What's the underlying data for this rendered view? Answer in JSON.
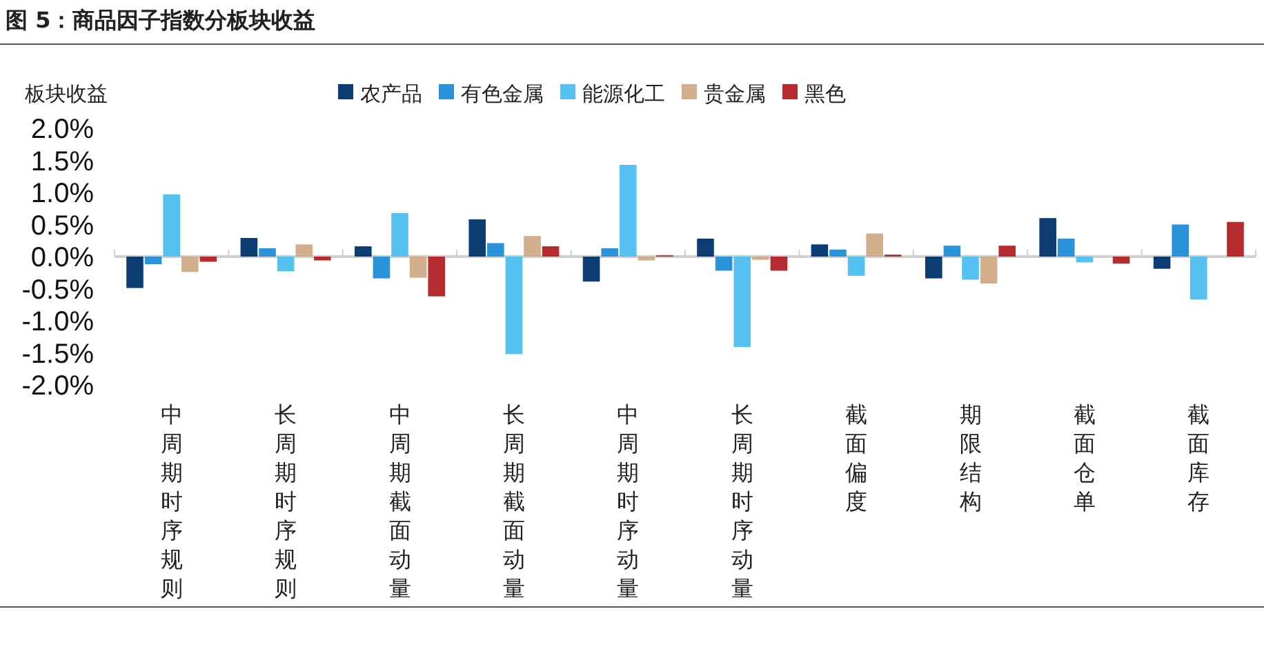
{
  "chart_data": {
    "type": "bar",
    "title": "图 5：商品因子指数分板块收益",
    "ylabel": "板块收益",
    "categories": [
      "中周期时序规则",
      "长周期时序规则",
      "中周期截面动量",
      "长周期截面动量",
      "中周期时序动量",
      "长周期时序动量",
      "截面偏度",
      "期限结构",
      "截面仓单",
      "截面库存"
    ],
    "series": [
      {
        "name": "农产品",
        "color": "#0b3d73",
        "values": [
          -0.49,
          0.29,
          0.16,
          0.58,
          -0.39,
          0.28,
          0.19,
          -0.34,
          0.6,
          -0.19
        ]
      },
      {
        "name": "有色金属",
        "color": "#2b93d9",
        "values": [
          -0.12,
          0.13,
          -0.34,
          0.21,
          0.13,
          -0.22,
          0.11,
          0.17,
          0.28,
          0.5
        ]
      },
      {
        "name": "能源化工",
        "color": "#55c1f0",
        "values": [
          0.97,
          -0.23,
          0.68,
          -1.52,
          1.43,
          -1.41,
          -0.3,
          -0.36,
          -0.09,
          -0.67
        ]
      },
      {
        "name": "贵金属",
        "color": "#d2ae8c",
        "values": [
          -0.24,
          0.19,
          -0.33,
          0.32,
          -0.06,
          -0.05,
          0.36,
          -0.42,
          0,
          0
        ]
      },
      {
        "name": "黑色",
        "color": "#b52b2e",
        "values": [
          -0.08,
          -0.06,
          -0.62,
          0.16,
          0.02,
          -0.22,
          0.03,
          0.17,
          -0.11,
          0.54
        ]
      }
    ],
    "ylim": [
      -2,
      2
    ],
    "yticks": [
      {
        "value": -2,
        "label": "-2.0%"
      },
      {
        "value": -1.5,
        "label": "-1.5%"
      },
      {
        "value": -1,
        "label": "-1.0%"
      },
      {
        "value": -0.5,
        "label": "-0.5%"
      },
      {
        "value": 0,
        "label": "0.0%"
      },
      {
        "value": 0.5,
        "label": "0.5%"
      },
      {
        "value": 1,
        "label": "1.0%"
      },
      {
        "value": 1.5,
        "label": "1.5%"
      },
      {
        "value": 2,
        "label": "2.0%"
      }
    ],
    "legend": "top"
  }
}
